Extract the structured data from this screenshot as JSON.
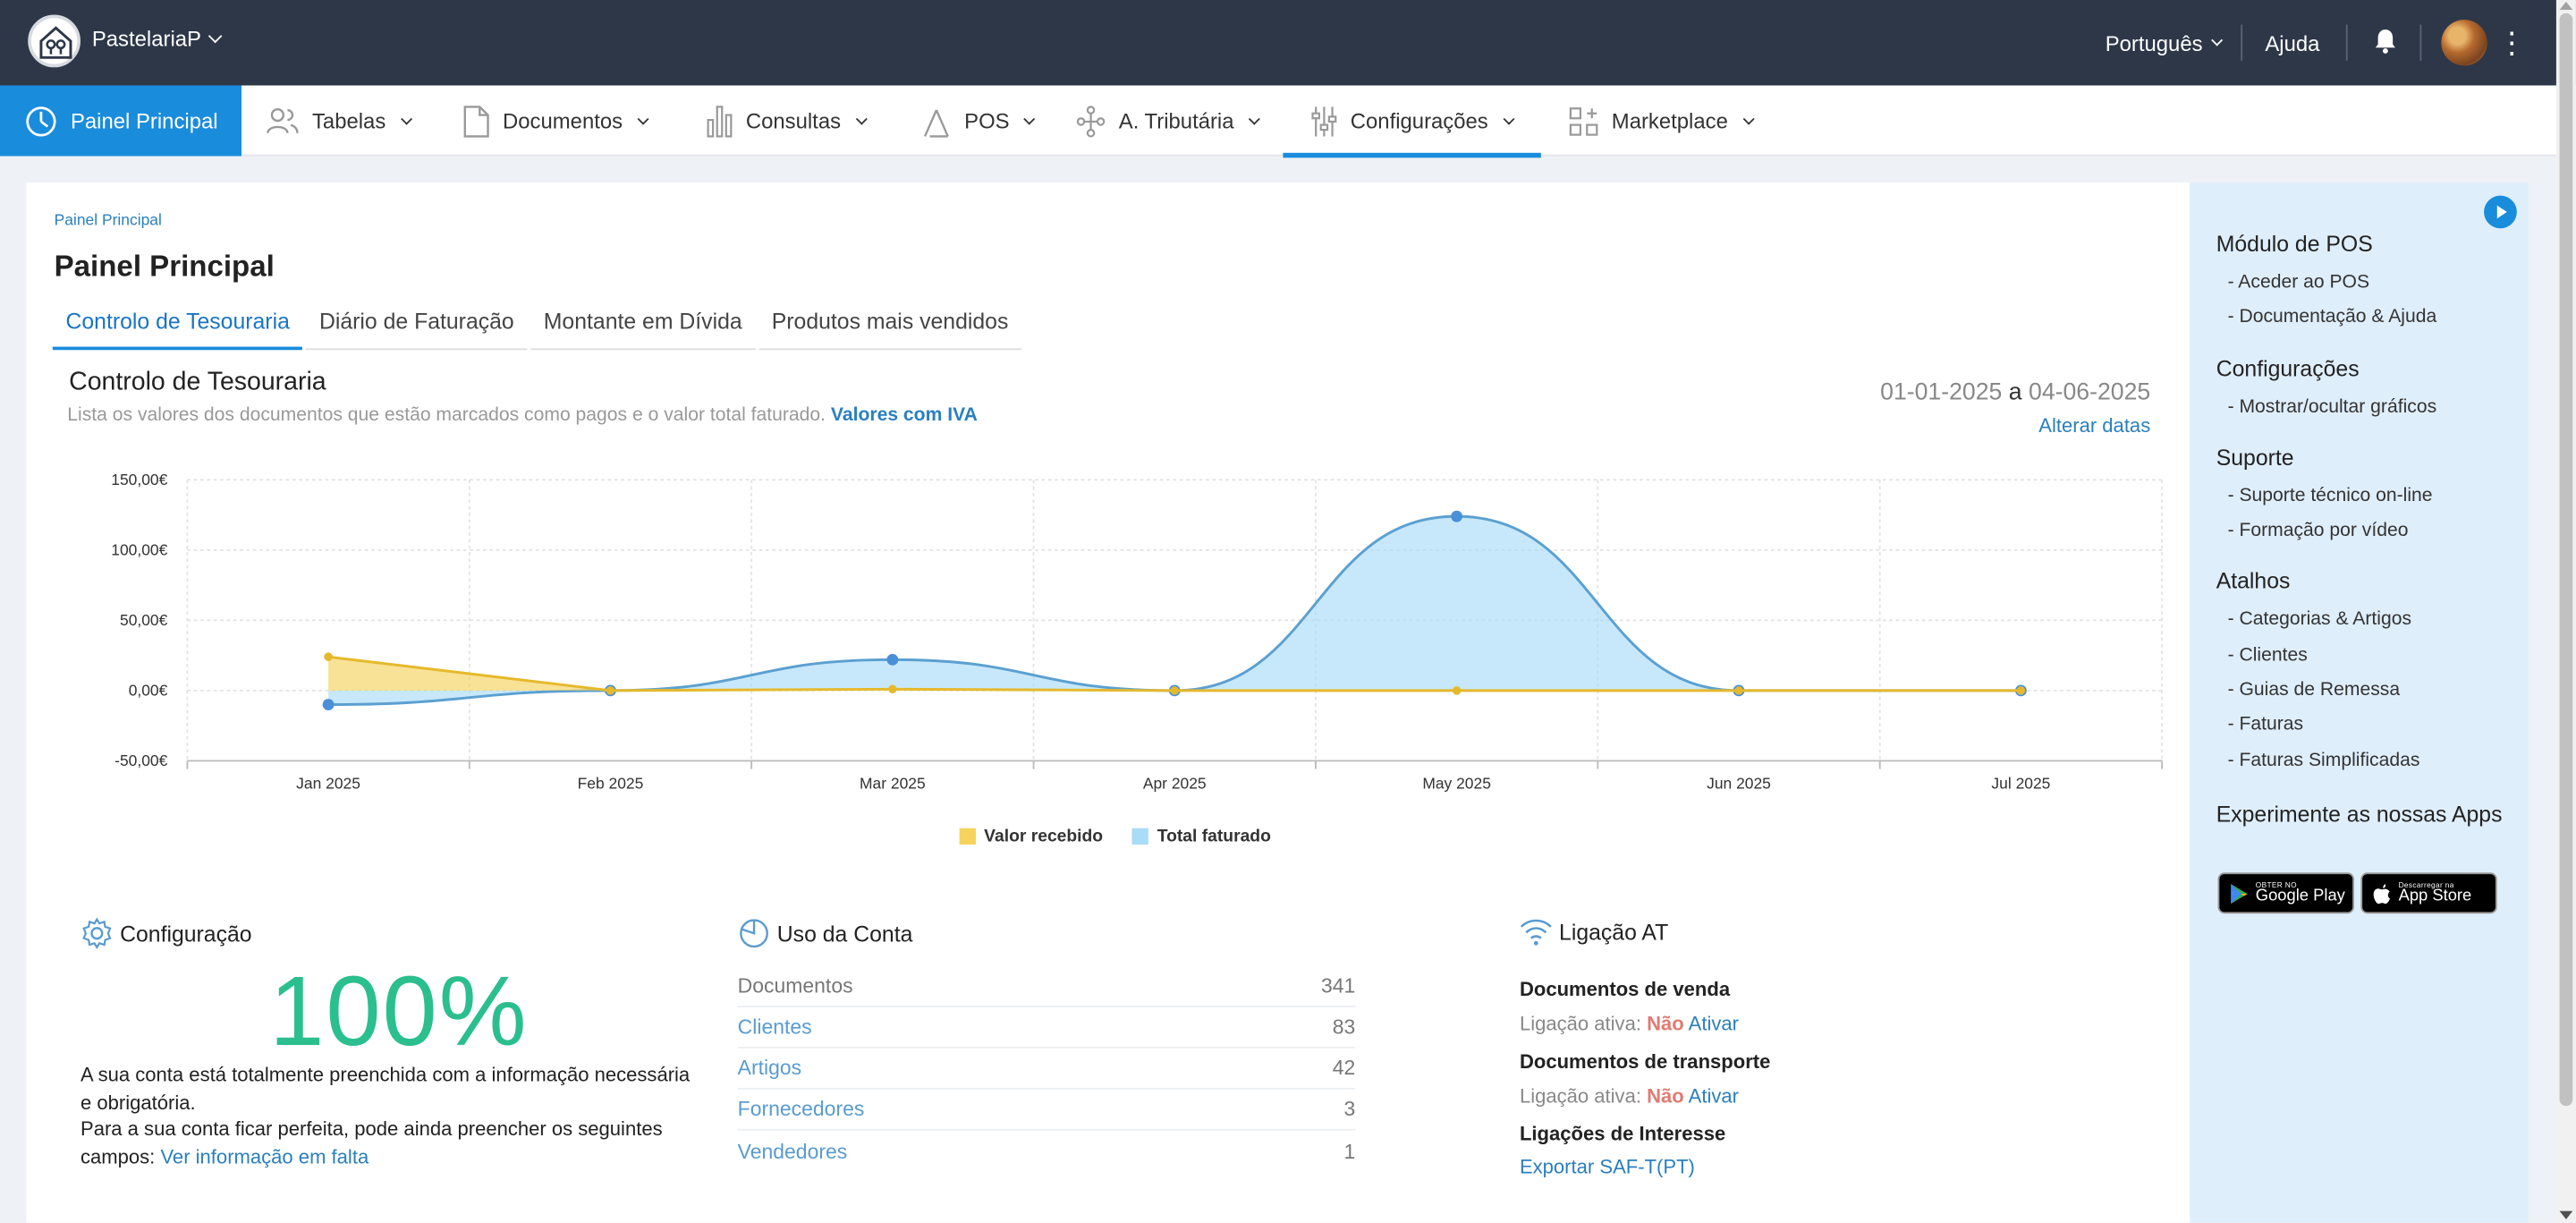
{
  "topbar": {
    "company": "PastelariaP",
    "language": "Português",
    "help": "Ajuda"
  },
  "nav": {
    "items": [
      {
        "label": "Painel Principal",
        "icon": "dashboard-icon"
      },
      {
        "label": "Tabelas",
        "icon": "users-icon"
      },
      {
        "label": "Documentos",
        "icon": "document-icon"
      },
      {
        "label": "Consultas",
        "icon": "bar-chart-icon"
      },
      {
        "label": "POS",
        "icon": "pos-icon"
      },
      {
        "label": "A. Tributária",
        "icon": "network-icon"
      },
      {
        "label": "Configurações",
        "icon": "sliders-icon"
      },
      {
        "label": "Marketplace",
        "icon": "apps-add-icon"
      }
    ]
  },
  "main": {
    "breadcrumb": "Painel Principal",
    "title": "Painel Principal",
    "tabs": [
      "Controlo de Tesouraria",
      "Diário de Faturação",
      "Montante em Dívida",
      "Produtos mais vendidos"
    ],
    "section_title": "Controlo de Tesouraria",
    "section_desc": "Lista os valores dos documentos que estão marcados como pagos e o valor total faturado.",
    "section_desc_link": "Valores com IVA",
    "date_from": "01-01-2025",
    "date_sep": "a",
    "date_to": "04-06-2025",
    "change_dates": "Alterar datas"
  },
  "chart_data": {
    "type": "area",
    "categories": [
      "Jan 2025",
      "Feb 2025",
      "Mar 2025",
      "Apr 2025",
      "May 2025",
      "Jun 2025",
      "Jul 2025"
    ],
    "series": [
      {
        "name": "Valor recebido",
        "color": "#f5d35c",
        "values": [
          24,
          0,
          1,
          0,
          0,
          0,
          0
        ]
      },
      {
        "name": "Total faturado",
        "color": "#a9dcf7",
        "values": [
          -10,
          0,
          22,
          0,
          124,
          0,
          0
        ]
      }
    ],
    "y_ticks": [
      "150,00€",
      "100,00€",
      "50,00€",
      "0,00€",
      "-50,00€"
    ],
    "ylim": [
      -50,
      150
    ],
    "grid": true,
    "legend": "bottom-center"
  },
  "config": {
    "title": "Configuração",
    "percent": "100%",
    "text1": "A sua conta está totalmente preenchida com a informação necessária e obrigatória.",
    "text2": "Para a sua conta ficar perfeita, pode ainda preencher os seguintes campos:",
    "link": "Ver informação em falta"
  },
  "usage": {
    "title": "Uso da Conta",
    "rows": [
      {
        "label": "Documentos",
        "value": "341"
      },
      {
        "label": "Clientes",
        "value": "83"
      },
      {
        "label": "Artigos",
        "value": "42"
      },
      {
        "label": "Fornecedores",
        "value": "3"
      },
      {
        "label": "Vendedores",
        "value": "1"
      }
    ]
  },
  "at": {
    "title": "Ligação AT",
    "sales_heading": "Documentos de venda",
    "transport_heading": "Documentos de transporte",
    "active_label": "Ligação ativa:",
    "no": "Não",
    "activate": "Ativar",
    "interest_heading": "Ligações de Interesse",
    "export": "Exportar SAF-T(PT)"
  },
  "sidebar": {
    "pos_title": "Módulo de POS",
    "pos_links": [
      "- Aceder ao POS",
      "- Documentação & Ajuda"
    ],
    "config_title": "Configurações",
    "config_links": [
      "- Mostrar/ocultar gráficos"
    ],
    "support_title": "Suporte",
    "support_links": [
      "- Suporte técnico on-line",
      "- Formação por vídeo"
    ],
    "shortcuts_title": "Atalhos",
    "shortcuts_links": [
      "- Categorias & Artigos",
      "- Clientes",
      "- Guias de Remessa",
      "- Faturas",
      "- Faturas Simplificadas"
    ],
    "apps_title": "Experimente as nossas Apps",
    "google_small": "OBTER NO",
    "google_big": "Google Play",
    "apple_small": "Descarregar na",
    "apple_big": "App Store"
  }
}
